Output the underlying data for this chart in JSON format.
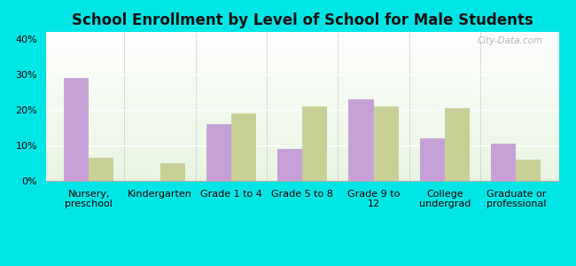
{
  "title": "School Enrollment by Level of School for Male Students",
  "categories": [
    "Nursery,\npreschool",
    "Kindergarten",
    "Grade 1 to 4",
    "Grade 5 to 8",
    "Grade 9 to\n12",
    "College\nundergrad",
    "Graduate or\nprofessional"
  ],
  "south_corning": [
    29,
    0,
    16,
    9,
    23,
    12,
    10.5
  ],
  "new_york": [
    6.5,
    5,
    19,
    21,
    21,
    20.5,
    6
  ],
  "bar_color_sc": "#c8a0d8",
  "bar_color_ny": "#c8d096",
  "ylim": [
    0,
    42
  ],
  "yticks": [
    0,
    10,
    20,
    30,
    40
  ],
  "ytick_labels": [
    "0%",
    "10%",
    "20%",
    "30%",
    "40%"
  ],
  "background_color": "#00e5e5",
  "plot_bg_top": "#ffffff",
  "plot_bg_bottom": "#e8f5e0",
  "title_fontsize": 12,
  "tick_fontsize": 8,
  "bar_width": 0.35,
  "watermark": "City-Data.com"
}
